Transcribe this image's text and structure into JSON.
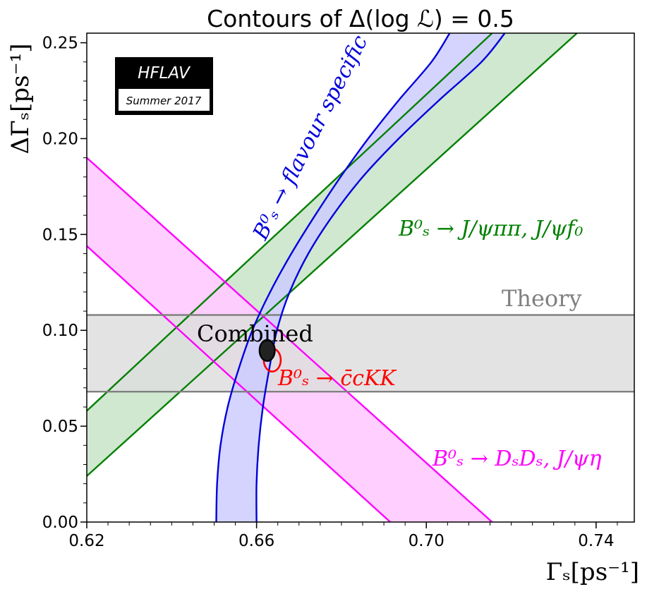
{
  "chart_data": {
    "type": "contour",
    "title": "Contours of Δ(log ℒ) = 0.5",
    "xlabel": "Γₛ[ps⁻¹]",
    "ylabel": "ΔΓₛ[ps⁻¹]",
    "xlim": [
      0.62,
      0.749
    ],
    "ylim": [
      0.0,
      0.255
    ],
    "x_ticks": [
      {
        "value": 0.62,
        "label": "0.62"
      },
      {
        "value": 0.66,
        "label": "0.66"
      },
      {
        "value": 0.7,
        "label": "0.70"
      },
      {
        "value": 0.74,
        "label": "0.74"
      }
    ],
    "y_ticks": [
      {
        "value": 0.0,
        "label": "0.00"
      },
      {
        "value": 0.05,
        "label": "0.05"
      },
      {
        "value": 0.1,
        "label": "0.10"
      },
      {
        "value": 0.15,
        "label": "0.15"
      },
      {
        "value": 0.2,
        "label": "0.20"
      },
      {
        "value": 0.25,
        "label": "0.25"
      }
    ],
    "series": [
      {
        "name": "B⁰ₛ → J/ψππ, J/ψf₀",
        "shape": "band",
        "color": "#008000",
        "fill": "#cde6cd",
        "edge_a": [
          [
            0.62,
            0.058
          ],
          [
            0.7155,
            0.255
          ]
        ],
        "edge_b": [
          [
            0.62,
            0.024
          ],
          [
            0.7355,
            0.255
          ]
        ]
      },
      {
        "name": "B⁰ₛ → DₛDₛ, J/ψη",
        "shape": "band",
        "color": "#ff00ff",
        "fill": "#ffccff",
        "edge_a": [
          [
            0.62,
            0.19
          ],
          [
            0.7155,
            0.0
          ]
        ],
        "edge_b": [
          [
            0.62,
            0.144
          ],
          [
            0.6915,
            0.0
          ]
        ]
      },
      {
        "name": "Theory",
        "shape": "hband",
        "color": "#808080",
        "fill": "#dedede",
        "y_low": 0.068,
        "y_high": 0.108
      },
      {
        "name": "B⁰ₛ → flavour specific",
        "shape": "curved-band",
        "color": "#0000dd",
        "fill": "#ccccff",
        "edge_a": [
          [
            0.6505,
            0.0
          ],
          [
            0.6507,
            0.02
          ],
          [
            0.6515,
            0.04
          ],
          [
            0.6532,
            0.06
          ],
          [
            0.6558,
            0.08
          ],
          [
            0.659,
            0.1
          ],
          [
            0.6632,
            0.12
          ],
          [
            0.6682,
            0.14
          ],
          [
            0.6738,
            0.16
          ],
          [
            0.6798,
            0.18
          ],
          [
            0.6863,
            0.2
          ],
          [
            0.6935,
            0.22
          ],
          [
            0.7012,
            0.24
          ],
          [
            0.7055,
            0.255
          ]
        ],
        "edge_b": [
          [
            0.66,
            0.0
          ],
          [
            0.66,
            0.02
          ],
          [
            0.6605,
            0.04
          ],
          [
            0.6615,
            0.06
          ],
          [
            0.663,
            0.08
          ],
          [
            0.6648,
            0.1
          ],
          [
            0.6678,
            0.12
          ],
          [
            0.6722,
            0.14
          ],
          [
            0.678,
            0.16
          ],
          [
            0.685,
            0.18
          ],
          [
            0.6935,
            0.2
          ],
          [
            0.703,
            0.22
          ],
          [
            0.713,
            0.24
          ],
          [
            0.7185,
            0.255
          ]
        ]
      },
      {
        "name": "B⁰ₛ → c̄cKK",
        "shape": "ellipse",
        "color": "#ff0000",
        "center": [
          0.6637,
          0.0845
        ],
        "half_width": 0.002,
        "half_height": 0.006
      },
      {
        "name": "Combined",
        "shape": "ellipse",
        "color": "#000000",
        "fill": "#222222",
        "center": [
          0.6625,
          0.0895
        ],
        "half_width": 0.0018,
        "half_height": 0.0055
      }
    ],
    "labels": {
      "green": "B⁰ₛ → J/ψππ, J/ψf₀",
      "magenta": "B⁰ₛ → DₛDₛ, J/ψη",
      "blue": "B⁰ₛ →  flavour specific",
      "red": "B⁰ₛ → c̄cKK",
      "theory": "Theory",
      "combined": "Combined"
    },
    "logo": {
      "main": "HFLAV",
      "sub": "Summer 2017"
    }
  }
}
